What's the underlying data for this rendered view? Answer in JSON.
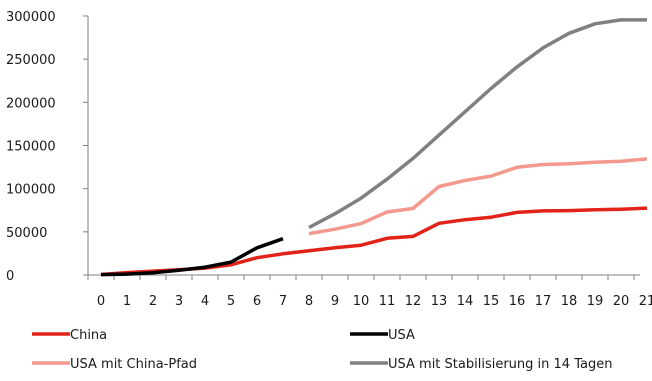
{
  "chart_data": {
    "type": "line",
    "title": "",
    "xlabel": "",
    "ylabel": "",
    "x": [
      0,
      1,
      2,
      3,
      4,
      5,
      6,
      7,
      8,
      9,
      10,
      11,
      12,
      13,
      14,
      15,
      16,
      17,
      18,
      19,
      20,
      21
    ],
    "xlim": [
      0,
      21
    ],
    "ylim": [
      0,
      300000
    ],
    "y_ticks": [
      "0",
      "50000",
      "100000",
      "150000",
      "200000",
      "250000",
      "300000"
    ],
    "x_ticks": [
      "0",
      "1",
      "2",
      "3",
      "4",
      "5",
      "6",
      "7",
      "8",
      "9",
      "10",
      "11",
      "12",
      "13",
      "14",
      "15",
      "16",
      "17",
      "18",
      "19",
      "20",
      "21"
    ],
    "grid": false,
    "legend_position": "bottom",
    "series": [
      {
        "name": "China",
        "color": "#e2231a",
        "points": [
          [
            0,
            600
          ],
          [
            1,
            2800
          ],
          [
            2,
            4500
          ],
          [
            3,
            6000
          ],
          [
            4,
            8000
          ],
          [
            5,
            11800
          ],
          [
            6,
            20000
          ],
          [
            7,
            24500
          ],
          [
            8,
            28000
          ],
          [
            9,
            31500
          ],
          [
            10,
            34500
          ],
          [
            11,
            42500
          ],
          [
            12,
            44700
          ],
          [
            13,
            59900
          ],
          [
            14,
            64000
          ],
          [
            15,
            67000
          ],
          [
            16,
            72500
          ],
          [
            17,
            74200
          ],
          [
            18,
            74600
          ],
          [
            19,
            75500
          ],
          [
            20,
            76200
          ],
          [
            21,
            77500
          ]
        ]
      },
      {
        "name": "USA",
        "color": "#000000",
        "points": [
          [
            0,
            500
          ],
          [
            1,
            1000
          ],
          [
            2,
            2500
          ],
          [
            3,
            5500
          ],
          [
            4,
            9000
          ],
          [
            5,
            15000
          ],
          [
            6,
            31500
          ],
          [
            7,
            42000
          ]
        ]
      },
      {
        "name": "USA mit China-Pfad",
        "color": "#f4998d",
        "points": [
          [
            8,
            48000
          ],
          [
            9,
            53000
          ],
          [
            10,
            59500
          ],
          [
            11,
            73000
          ],
          [
            12,
            77000
          ],
          [
            13,
            102500
          ],
          [
            14,
            109500
          ],
          [
            15,
            114500
          ],
          [
            16,
            124800
          ],
          [
            17,
            128000
          ],
          [
            18,
            128800
          ],
          [
            19,
            130500
          ],
          [
            20,
            131800
          ],
          [
            21,
            134500
          ]
        ]
      },
      {
        "name": "USA mit Stabilisierung in 14 Tagen",
        "color": "#808080",
        "points": [
          [
            8,
            55000
          ],
          [
            9,
            71000
          ],
          [
            10,
            89000
          ],
          [
            11,
            111000
          ],
          [
            12,
            135000
          ],
          [
            13,
            162000
          ],
          [
            14,
            189000
          ],
          [
            15,
            216000
          ],
          [
            16,
            241000
          ],
          [
            17,
            263000
          ],
          [
            18,
            280000
          ],
          [
            19,
            291000
          ],
          [
            20,
            295500
          ],
          [
            21,
            295500
          ]
        ]
      }
    ]
  }
}
